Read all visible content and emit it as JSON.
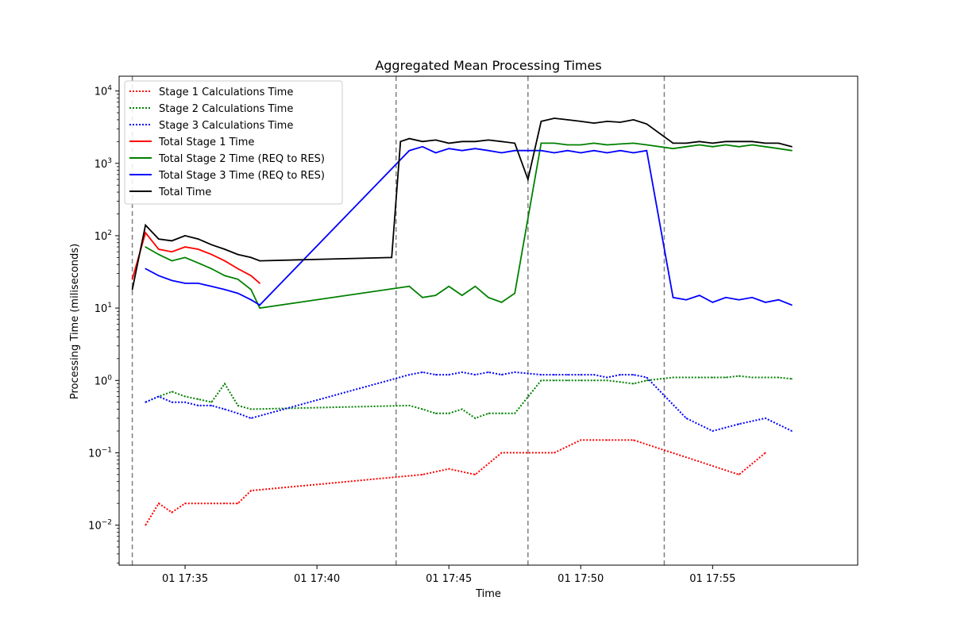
{
  "chart_data": {
    "type": "line",
    "title": "Aggregated Mean Processing Times",
    "xlabel": "Time",
    "ylabel": "Processing Time (miliseconds)",
    "yscale": "log",
    "ylim": [
      0.0028,
      16000
    ],
    "xlim_minutes": [
      17.3,
      17.58
    ],
    "x_unit": "time of day (HH:MM, day 01)",
    "x_ticks": [
      {
        "value": "17:35",
        "label": "01 17:35"
      },
      {
        "value": "17:40",
        "label": "01 17:40"
      },
      {
        "value": "17:45",
        "label": "01 17:45"
      },
      {
        "value": "17:50",
        "label": "01 17:50"
      },
      {
        "value": "17:55",
        "label": "01 17:55"
      }
    ],
    "y_ticks": [
      {
        "value": 0.01,
        "base": "10",
        "exp": "−2"
      },
      {
        "value": 0.1,
        "base": "10",
        "exp": "−1"
      },
      {
        "value": 1,
        "base": "10",
        "exp": "0"
      },
      {
        "value": 10,
        "base": "10",
        "exp": "1"
      },
      {
        "value": 100,
        "base": "10",
        "exp": "2"
      },
      {
        "value": 1000,
        "base": "10",
        "exp": "3"
      },
      {
        "value": 10000,
        "base": "10",
        "exp": "4"
      }
    ],
    "vlines": [
      "17:33",
      "17:43",
      "17:48",
      "17:53:10"
    ],
    "grid": false,
    "legend_position": "upper-left",
    "series": [
      {
        "name": "Stage 1 Calculations Time",
        "color": "#ff0000",
        "style": "dotted",
        "points": [
          [
            "17:33:30",
            0.01
          ],
          [
            "17:34:00",
            0.02
          ],
          [
            "17:34:30",
            0.015
          ],
          [
            "17:35:00",
            0.02
          ],
          [
            "17:35:30",
            0.02
          ],
          [
            "17:36:00",
            0.02
          ],
          [
            "17:36:30",
            0.02
          ],
          [
            "17:37:00",
            0.02
          ],
          [
            "17:37:30",
            0.03
          ],
          [
            "17:44:00",
            0.05
          ],
          [
            "17:45:00",
            0.06
          ],
          [
            "17:46:00",
            0.05
          ],
          [
            "17:47:00",
            0.1
          ],
          [
            "17:49:00",
            0.1
          ],
          [
            "17:50:00",
            0.15
          ],
          [
            "17:51:00",
            0.15
          ],
          [
            "17:52:00",
            0.15
          ],
          [
            "17:56:00",
            0.05
          ],
          [
            "17:57:00",
            0.1
          ]
        ]
      },
      {
        "name": "Stage 2 Calculations Time",
        "color": "#008000",
        "style": "dotted",
        "points": [
          [
            "17:33:30",
            0.5
          ],
          [
            "17:34:00",
            0.6
          ],
          [
            "17:34:30",
            0.7
          ],
          [
            "17:35:00",
            0.6
          ],
          [
            "17:35:30",
            0.55
          ],
          [
            "17:36:00",
            0.5
          ],
          [
            "17:36:30",
            0.9
          ],
          [
            "17:37:00",
            0.45
          ],
          [
            "17:37:30",
            0.4
          ],
          [
            "17:43:30",
            0.45
          ],
          [
            "17:44:00",
            0.4
          ],
          [
            "17:44:30",
            0.35
          ],
          [
            "17:45:00",
            0.35
          ],
          [
            "17:45:30",
            0.4
          ],
          [
            "17:46:00",
            0.3
          ],
          [
            "17:46:30",
            0.35
          ],
          [
            "17:47:00",
            0.35
          ],
          [
            "17:47:30",
            0.35
          ],
          [
            "17:48:30",
            1.0
          ],
          [
            "17:49:00",
            1.0
          ],
          [
            "17:49:30",
            1.0
          ],
          [
            "17:50:00",
            1.0
          ],
          [
            "17:50:30",
            1.0
          ],
          [
            "17:51:00",
            1.0
          ],
          [
            "17:51:30",
            0.95
          ],
          [
            "17:52:00",
            0.9
          ],
          [
            "17:52:30",
            1.0
          ],
          [
            "17:53:30",
            1.1
          ],
          [
            "17:54:00",
            1.1
          ],
          [
            "17:54:30",
            1.1
          ],
          [
            "17:55:00",
            1.1
          ],
          [
            "17:55:30",
            1.1
          ],
          [
            "17:56:00",
            1.15
          ],
          [
            "17:56:30",
            1.1
          ],
          [
            "17:57:00",
            1.1
          ],
          [
            "17:57:30",
            1.1
          ],
          [
            "17:58:00",
            1.05
          ]
        ]
      },
      {
        "name": "Stage 3 Calculations Time",
        "color": "#0000ff",
        "style": "dotted",
        "points": [
          [
            "17:33:30",
            0.5
          ],
          [
            "17:34:00",
            0.6
          ],
          [
            "17:34:30",
            0.5
          ],
          [
            "17:35:00",
            0.5
          ],
          [
            "17:35:30",
            0.45
          ],
          [
            "17:36:00",
            0.45
          ],
          [
            "17:36:30",
            0.4
          ],
          [
            "17:37:00",
            0.35
          ],
          [
            "17:37:30",
            0.3
          ],
          [
            "17:43:30",
            1.2
          ],
          [
            "17:44:00",
            1.3
          ],
          [
            "17:44:30",
            1.2
          ],
          [
            "17:45:00",
            1.2
          ],
          [
            "17:45:30",
            1.3
          ],
          [
            "17:46:00",
            1.2
          ],
          [
            "17:46:30",
            1.3
          ],
          [
            "17:47:00",
            1.2
          ],
          [
            "17:47:30",
            1.3
          ],
          [
            "17:48:30",
            1.2
          ],
          [
            "17:49:00",
            1.2
          ],
          [
            "17:49:30",
            1.2
          ],
          [
            "17:50:00",
            1.2
          ],
          [
            "17:50:30",
            1.2
          ],
          [
            "17:51:00",
            1.1
          ],
          [
            "17:51:30",
            1.2
          ],
          [
            "17:52:00",
            1.2
          ],
          [
            "17:52:30",
            1.1
          ],
          [
            "17:54:00",
            0.3
          ],
          [
            "17:55:00",
            0.2
          ],
          [
            "17:56:00",
            0.25
          ],
          [
            "17:57:00",
            0.3
          ],
          [
            "17:58:00",
            0.2
          ]
        ]
      },
      {
        "name": "Total Stage 1 Time",
        "color": "#ff0000",
        "style": "solid",
        "points": [
          [
            "17:33:00",
            25
          ],
          [
            "17:33:30",
            110
          ],
          [
            "17:34:00",
            65
          ],
          [
            "17:34:30",
            60
          ],
          [
            "17:35:00",
            70
          ],
          [
            "17:35:30",
            65
          ],
          [
            "17:36:00",
            55
          ],
          [
            "17:36:30",
            45
          ],
          [
            "17:37:00",
            35
          ],
          [
            "17:37:30",
            28
          ],
          [
            "17:37:50",
            22
          ]
        ]
      },
      {
        "name": "Total Stage 2 Time (REQ to RES)",
        "color": "#008000",
        "style": "solid",
        "points": [
          [
            "17:33:30",
            70
          ],
          [
            "17:34:00",
            55
          ],
          [
            "17:34:30",
            45
          ],
          [
            "17:35:00",
            50
          ],
          [
            "17:35:30",
            42
          ],
          [
            "17:36:00",
            35
          ],
          [
            "17:36:30",
            28
          ],
          [
            "17:37:00",
            25
          ],
          [
            "17:37:30",
            18
          ],
          [
            "17:37:50",
            10
          ],
          [
            "17:43:30",
            20
          ],
          [
            "17:44:00",
            14
          ],
          [
            "17:44:30",
            15
          ],
          [
            "17:45:00",
            20
          ],
          [
            "17:45:30",
            15
          ],
          [
            "17:46:00",
            20
          ],
          [
            "17:46:30",
            14
          ],
          [
            "17:47:00",
            12
          ],
          [
            "17:47:30",
            16
          ],
          [
            "17:48:30",
            1900
          ],
          [
            "17:49:00",
            1900
          ],
          [
            "17:49:30",
            1800
          ],
          [
            "17:50:00",
            1800
          ],
          [
            "17:50:30",
            1900
          ],
          [
            "17:51:00",
            1800
          ],
          [
            "17:51:30",
            1850
          ],
          [
            "17:52:00",
            1900
          ],
          [
            "17:52:30",
            1800
          ],
          [
            "17:53:30",
            1600
          ],
          [
            "17:54:00",
            1700
          ],
          [
            "17:54:30",
            1800
          ],
          [
            "17:55:00",
            1700
          ],
          [
            "17:55:30",
            1800
          ],
          [
            "17:56:00",
            1700
          ],
          [
            "17:56:30",
            1800
          ],
          [
            "17:57:00",
            1700
          ],
          [
            "17:57:30",
            1600
          ],
          [
            "17:58:00",
            1500
          ]
        ]
      },
      {
        "name": "Total Stage 3 Time (REQ to RES)",
        "color": "#0000ff",
        "style": "solid",
        "points": [
          [
            "17:33:30",
            35
          ],
          [
            "17:34:00",
            28
          ],
          [
            "17:34:30",
            24
          ],
          [
            "17:35:00",
            22
          ],
          [
            "17:35:30",
            22
          ],
          [
            "17:36:00",
            20
          ],
          [
            "17:36:30",
            18
          ],
          [
            "17:37:00",
            16
          ],
          [
            "17:37:30",
            13
          ],
          [
            "17:37:50",
            11
          ],
          [
            "17:43:30",
            1500
          ],
          [
            "17:44:00",
            1700
          ],
          [
            "17:44:30",
            1400
          ],
          [
            "17:45:00",
            1600
          ],
          [
            "17:45:30",
            1500
          ],
          [
            "17:46:00",
            1600
          ],
          [
            "17:46:30",
            1500
          ],
          [
            "17:47:00",
            1400
          ],
          [
            "17:47:30",
            1500
          ],
          [
            "17:48:30",
            1500
          ],
          [
            "17:49:00",
            1400
          ],
          [
            "17:49:30",
            1500
          ],
          [
            "17:50:00",
            1400
          ],
          [
            "17:50:30",
            1500
          ],
          [
            "17:51:00",
            1400
          ],
          [
            "17:51:30",
            1500
          ],
          [
            "17:52:00",
            1400
          ],
          [
            "17:52:30",
            1500
          ],
          [
            "17:53:30",
            14
          ],
          [
            "17:54:00",
            13
          ],
          [
            "17:54:30",
            15
          ],
          [
            "17:55:00",
            12
          ],
          [
            "17:55:30",
            14
          ],
          [
            "17:56:00",
            13
          ],
          [
            "17:56:30",
            14
          ],
          [
            "17:57:00",
            12
          ],
          [
            "17:57:30",
            13
          ],
          [
            "17:58:00",
            11
          ]
        ]
      },
      {
        "name": "Total Time",
        "color": "#000000",
        "style": "solid",
        "points": [
          [
            "17:33:00",
            18
          ],
          [
            "17:33:30",
            140
          ],
          [
            "17:34:00",
            90
          ],
          [
            "17:34:30",
            85
          ],
          [
            "17:35:00",
            100
          ],
          [
            "17:35:30",
            90
          ],
          [
            "17:36:00",
            75
          ],
          [
            "17:36:30",
            65
          ],
          [
            "17:37:00",
            55
          ],
          [
            "17:37:30",
            50
          ],
          [
            "17:37:50",
            45
          ],
          [
            "17:42:50",
            50
          ],
          [
            "17:43:10",
            2000
          ],
          [
            "17:43:30",
            2200
          ],
          [
            "17:44:00",
            2000
          ],
          [
            "17:44:30",
            2100
          ],
          [
            "17:45:00",
            1900
          ],
          [
            "17:45:30",
            2000
          ],
          [
            "17:46:00",
            2000
          ],
          [
            "17:46:30",
            2100
          ],
          [
            "17:47:00",
            2000
          ],
          [
            "17:47:30",
            1900
          ],
          [
            "17:48:00",
            600
          ],
          [
            "17:48:30",
            3800
          ],
          [
            "17:49:00",
            4200
          ],
          [
            "17:49:30",
            4000
          ],
          [
            "17:50:00",
            3800
          ],
          [
            "17:50:30",
            3600
          ],
          [
            "17:51:00",
            3800
          ],
          [
            "17:51:30",
            3700
          ],
          [
            "17:52:00",
            4000
          ],
          [
            "17:52:30",
            3500
          ],
          [
            "17:53:30",
            1900
          ],
          [
            "17:54:00",
            1900
          ],
          [
            "17:54:30",
            2000
          ],
          [
            "17:55:00",
            1900
          ],
          [
            "17:55:30",
            2000
          ],
          [
            "17:56:00",
            2000
          ],
          [
            "17:56:30",
            2000
          ],
          [
            "17:57:00",
            1900
          ],
          [
            "17:57:30",
            1900
          ],
          [
            "17:58:00",
            1700
          ]
        ]
      }
    ]
  }
}
